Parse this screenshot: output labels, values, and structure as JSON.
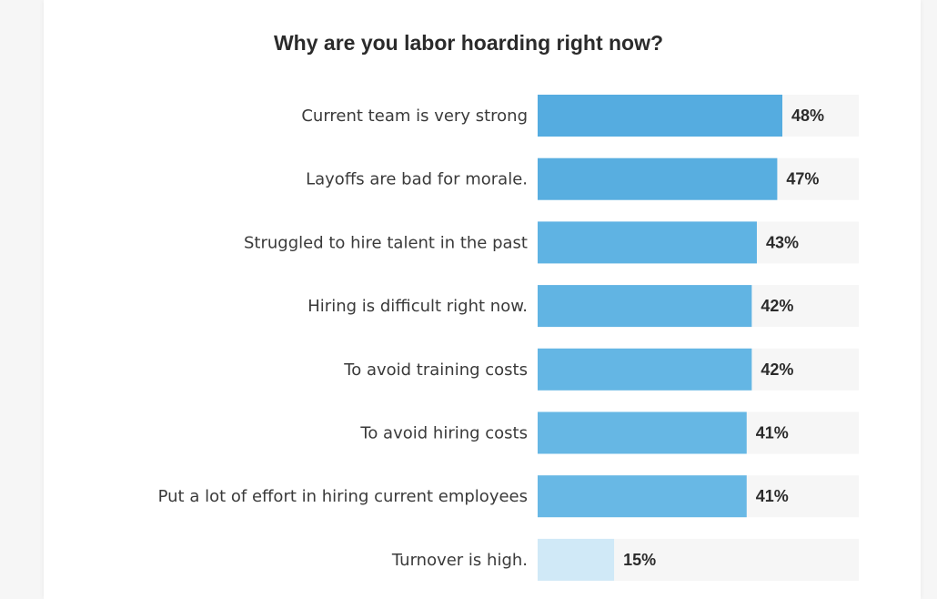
{
  "chart_data": {
    "type": "bar",
    "orientation": "horizontal",
    "title": "Why are you labor hoarding right now?",
    "xlim": [
      0,
      66
    ],
    "categories": [
      "Current team is very strong",
      "Layoffs are bad for morale.",
      "Struggled to hire talent in the past",
      "Hiring is difficult right now.",
      "To avoid training costs",
      "To avoid hiring costs",
      "Put a lot of effort in hiring current employees",
      "Turnover is high."
    ],
    "values": [
      48,
      47,
      43,
      42,
      42,
      41,
      41,
      15
    ],
    "value_labels": [
      "48%",
      "47%",
      "43%",
      "42%",
      "42%",
      "41%",
      "41%",
      "15%"
    ],
    "bar_colors": [
      "#55ace0",
      "#58aee0",
      "#5fb3e3",
      "#61b4e3",
      "#64b6e4",
      "#66b7e4",
      "#68b8e5",
      "#d0e9f7"
    ],
    "track_color": "#f6f6f6"
  }
}
